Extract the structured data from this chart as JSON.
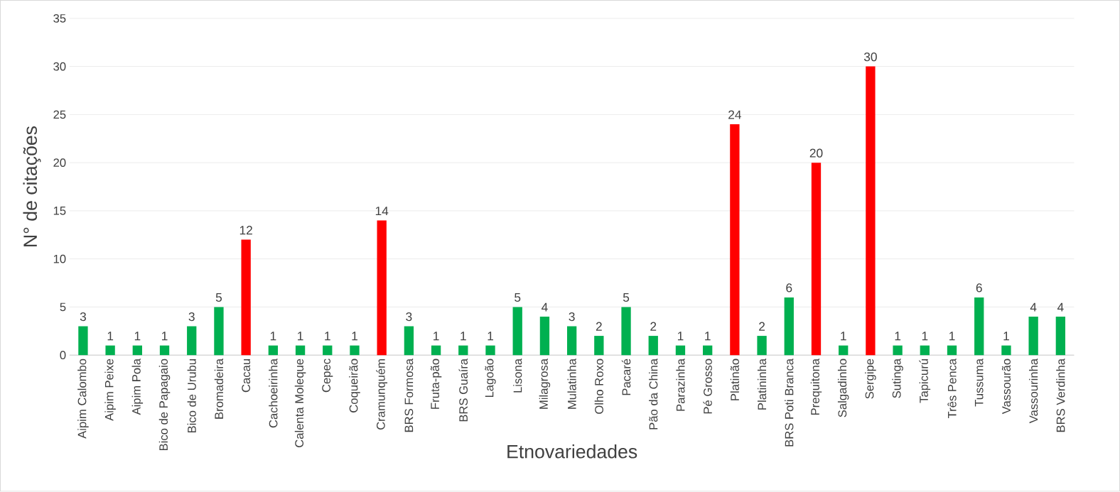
{
  "chart_data": {
    "type": "bar",
    "xlabel": "Etnovariedades",
    "ylabel": "N° de citações",
    "categories": [
      "Aipim Calombo",
      "Aipim Peixe",
      "Aipim Pola",
      "Bico de Papagaio",
      "Bico de Urubu",
      "Bromadeira",
      "Cacau",
      "Cachoeirinha",
      "Calenta Moleque",
      "Cepec",
      "Coqueirão",
      "Cramunquém",
      "BRS Formosa",
      "Fruta-pão",
      "BRS Guaíra",
      "Lagoão",
      "Lisona",
      "Milagrosa",
      "Mulatinha",
      "Olho Roxo",
      "Pacaré",
      "Pão da China",
      "Parazinha",
      "Pé Grosso",
      "Platinão",
      "Platininha",
      "BRS Poti Branca",
      "Prequitona",
      "Salgadinho",
      "Sergipe",
      "Sutinga",
      "Tapicurú",
      "Três Penca",
      "Tussuma",
      "Vassourão",
      "Vassourinha",
      "BRS Verdinha"
    ],
    "values": [
      3,
      1,
      1,
      1,
      3,
      5,
      12,
      1,
      1,
      1,
      1,
      14,
      3,
      1,
      1,
      1,
      5,
      4,
      3,
      2,
      5,
      2,
      1,
      1,
      24,
      2,
      6,
      20,
      1,
      30,
      1,
      1,
      1,
      6,
      1,
      4,
      4
    ],
    "colors": [
      "#00b050",
      "#00b050",
      "#00b050",
      "#00b050",
      "#00b050",
      "#00b050",
      "#ff0000",
      "#00b050",
      "#00b050",
      "#00b050",
      "#00b050",
      "#ff0000",
      "#00b050",
      "#00b050",
      "#00b050",
      "#00b050",
      "#00b050",
      "#00b050",
      "#00b050",
      "#00b050",
      "#00b050",
      "#00b050",
      "#00b050",
      "#00b050",
      "#ff0000",
      "#00b050",
      "#00b050",
      "#ff0000",
      "#00b050",
      "#ff0000",
      "#00b050",
      "#00b050",
      "#00b050",
      "#00b050",
      "#00b050",
      "#00b050",
      "#00b050"
    ],
    "ylim": [
      0,
      35
    ],
    "yticks": [
      0,
      5,
      10,
      15,
      20,
      25,
      30,
      35
    ],
    "grid": "y",
    "data_labels": true
  }
}
